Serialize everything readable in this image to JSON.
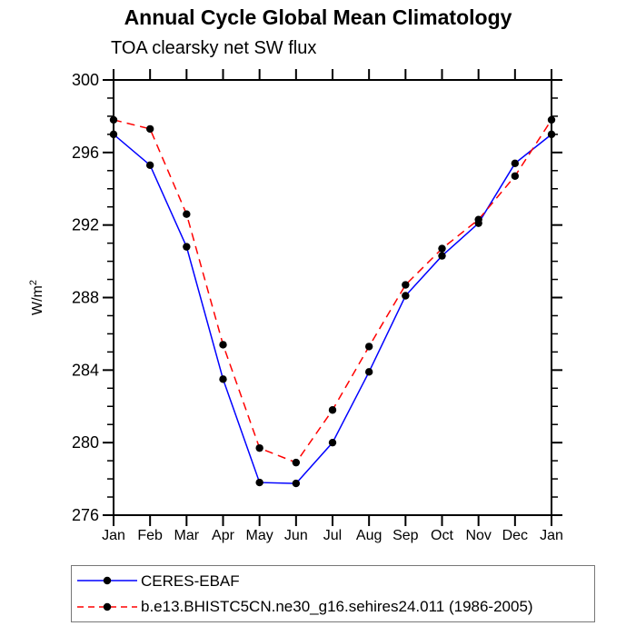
{
  "chart_data": {
    "type": "line",
    "title": "Annual Cycle Global Mean Climatology",
    "subtitle": "TOA clearsky net SW flux",
    "ylabel": "W/m",
    "ylabel_superscript": "2",
    "x_tick_labels": [
      "Jan",
      "Feb",
      "Mar",
      "Apr",
      "May",
      "Jun",
      "Jul",
      "Aug",
      "Sep",
      "Oct",
      "Nov",
      "Dec",
      "Jan"
    ],
    "ylim": [
      276,
      300
    ],
    "y_major_tick_step": 4,
    "y_minor_tick_step": 1,
    "y_major_tick_labels": [
      "276",
      "280",
      "284",
      "288",
      "292",
      "296",
      "300"
    ],
    "grid": false,
    "axis_color": "#000000",
    "marker_color": "#000000",
    "legend_position": "below-axis-left",
    "series": [
      {
        "name": "CERES-EBAF",
        "color": "#0000ff",
        "line_style": "solid",
        "marker": "filled-circle",
        "values": [
          297.0,
          295.3,
          290.8,
          283.5,
          277.8,
          277.75,
          280.0,
          283.9,
          288.1,
          290.3,
          292.1,
          295.4,
          297.0
        ]
      },
      {
        "name": "b.e13.BHISTC5CN.ne30_g16.sehires24.011 (1986-2005)",
        "color": "#ff0000",
        "line_style": "dashed",
        "marker": "filled-circle",
        "values": [
          297.8,
          297.3,
          292.6,
          285.4,
          279.7,
          278.9,
          281.8,
          285.3,
          288.7,
          290.7,
          292.3,
          294.7,
          297.8
        ]
      }
    ]
  }
}
